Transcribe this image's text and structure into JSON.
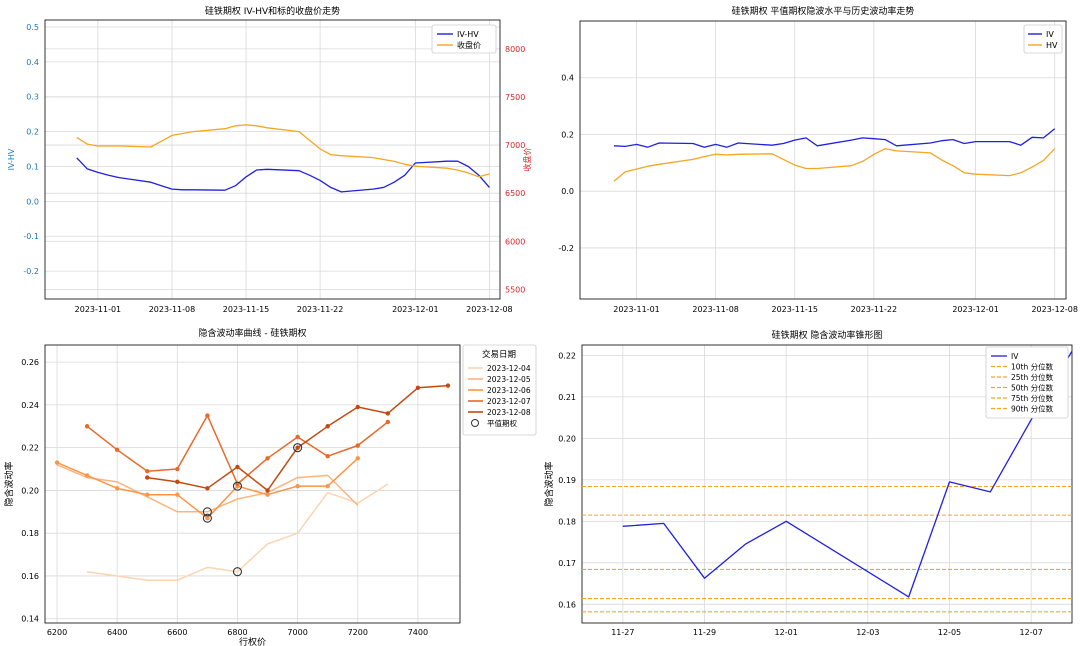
{
  "charts": [
    {
      "type": "line",
      "title": "硅铁期权 IV-HV和标的收盘价走势",
      "xlabel": "",
      "ylabel": "IV-HV",
      "y2label": "收盘价",
      "ylim": [
        -0.28,
        0.52
      ],
      "yticks": [
        -0.2,
        -0.1,
        0.0,
        0.1,
        0.2,
        0.3,
        0.4,
        0.5
      ],
      "y2lim": [
        5400,
        8300
      ],
      "y2ticks": [
        5500,
        6000,
        6500,
        7000,
        7500,
        8000
      ],
      "xlim": [
        "2023-10-27",
        "2023-12-09"
      ],
      "xticks": [
        "2023-11-01",
        "2023-11-08",
        "2023-11-15",
        "2023-11-22",
        "2023-12-01",
        "2023-12-08"
      ],
      "grid": true,
      "legend": "top-right",
      "series": [
        {
          "name": "IV-HV",
          "axis": "left",
          "color": "#2020e0",
          "x": [
            "2023-10-30",
            "2023-10-31",
            "2023-11-01",
            "2023-11-02",
            "2023-11-03",
            "2023-11-06",
            "2023-11-07",
            "2023-11-08",
            "2023-11-09",
            "2023-11-10",
            "2023-11-13",
            "2023-11-14",
            "2023-11-15",
            "2023-11-16",
            "2023-11-17",
            "2023-11-20",
            "2023-11-21",
            "2023-11-22",
            "2023-11-23",
            "2023-11-24",
            "2023-11-27",
            "2023-11-28",
            "2023-11-29",
            "2023-11-30",
            "2023-12-01",
            "2023-12-04",
            "2023-12-05",
            "2023-12-06",
            "2023-12-07",
            "2023-12-08"
          ],
          "y": [
            0.125,
            0.093,
            0.083,
            0.075,
            0.068,
            0.055,
            0.045,
            0.035,
            0.033,
            0.033,
            0.032,
            0.045,
            0.07,
            0.09,
            0.092,
            0.088,
            0.075,
            0.06,
            0.04,
            0.027,
            0.035,
            0.04,
            0.055,
            0.075,
            0.11,
            0.115,
            0.115,
            0.1,
            0.075,
            0.04
          ]
        },
        {
          "name": "收盘价",
          "axis": "right",
          "color": "#f5a623",
          "x": [
            "2023-10-30",
            "2023-10-31",
            "2023-11-01",
            "2023-11-02",
            "2023-11-03",
            "2023-11-06",
            "2023-11-07",
            "2023-11-08",
            "2023-11-09",
            "2023-11-10",
            "2023-11-13",
            "2023-11-14",
            "2023-11-15",
            "2023-11-16",
            "2023-11-17",
            "2023-11-20",
            "2023-11-21",
            "2023-11-22",
            "2023-11-23",
            "2023-11-24",
            "2023-11-27",
            "2023-11-28",
            "2023-11-29",
            "2023-11-30",
            "2023-12-01",
            "2023-12-04",
            "2023-12-05",
            "2023-12-06",
            "2023-12-07",
            "2023-12-08"
          ],
          "y": [
            7080,
            7010,
            6990,
            6990,
            6990,
            6980,
            7040,
            7100,
            7120,
            7140,
            7170,
            7200,
            7210,
            7200,
            7180,
            7140,
            7050,
            6960,
            6900,
            6890,
            6870,
            6850,
            6830,
            6800,
            6780,
            6760,
            6740,
            6710,
            6670,
            6700
          ]
        }
      ]
    },
    {
      "type": "line",
      "title": "硅铁期权 平值期权隐波水平与历史波动率走势",
      "xlabel": "",
      "ylabel": "",
      "ylim": [
        -0.38,
        0.6
      ],
      "yticks": [
        -0.2,
        0.0,
        0.2,
        0.4
      ],
      "xlim": [
        "2023-10-27",
        "2023-12-09"
      ],
      "xticks": [
        "2023-11-01",
        "2023-11-08",
        "2023-11-15",
        "2023-11-22",
        "2023-12-01",
        "2023-12-08"
      ],
      "grid": true,
      "legend": "top-right",
      "series": [
        {
          "name": "IV",
          "color": "#2020e0",
          "x": [
            "2023-10-30",
            "2023-10-31",
            "2023-11-01",
            "2023-11-02",
            "2023-11-03",
            "2023-11-06",
            "2023-11-07",
            "2023-11-08",
            "2023-11-09",
            "2023-11-10",
            "2023-11-13",
            "2023-11-14",
            "2023-11-15",
            "2023-11-16",
            "2023-11-17",
            "2023-11-20",
            "2023-11-21",
            "2023-11-22",
            "2023-11-23",
            "2023-11-24",
            "2023-11-27",
            "2023-11-28",
            "2023-11-29",
            "2023-11-30",
            "2023-12-01",
            "2023-12-04",
            "2023-12-05",
            "2023-12-06",
            "2023-12-07",
            "2023-12-08"
          ],
          "y": [
            0.16,
            0.158,
            0.165,
            0.155,
            0.17,
            0.168,
            0.155,
            0.165,
            0.155,
            0.17,
            0.162,
            0.168,
            0.18,
            0.188,
            0.16,
            0.18,
            0.188,
            0.185,
            0.182,
            0.16,
            0.17,
            0.178,
            0.182,
            0.168,
            0.175,
            0.175,
            0.162,
            0.19,
            0.188,
            0.22
          ]
        },
        {
          "name": "HV",
          "color": "#f5a623",
          "x": [
            "2023-10-30",
            "2023-10-31",
            "2023-11-01",
            "2023-11-02",
            "2023-11-03",
            "2023-11-06",
            "2023-11-07",
            "2023-11-08",
            "2023-11-09",
            "2023-11-10",
            "2023-11-13",
            "2023-11-14",
            "2023-11-15",
            "2023-11-16",
            "2023-11-17",
            "2023-11-20",
            "2023-11-21",
            "2023-11-22",
            "2023-11-23",
            "2023-11-24",
            "2023-11-27",
            "2023-11-28",
            "2023-11-29",
            "2023-11-30",
            "2023-12-01",
            "2023-12-04",
            "2023-12-05",
            "2023-12-06",
            "2023-12-07",
            "2023-12-08"
          ],
          "y": [
            0.035,
            0.068,
            0.078,
            0.088,
            0.095,
            0.112,
            0.122,
            0.13,
            0.128,
            0.13,
            0.132,
            0.112,
            0.092,
            0.08,
            0.08,
            0.09,
            0.105,
            0.13,
            0.15,
            0.142,
            0.135,
            0.11,
            0.09,
            0.065,
            0.06,
            0.055,
            0.065,
            0.085,
            0.108,
            0.15
          ]
        }
      ]
    },
    {
      "type": "line",
      "title": "隐含波动率曲线 - 硅铁期权",
      "xlabel": "行权价",
      "ylabel": "隐含波动率",
      "xlim": [
        6160,
        7540
      ],
      "xticks": [
        6200,
        6400,
        6600,
        6800,
        7000,
        7200,
        7400
      ],
      "ylim": [
        0.138,
        0.268
      ],
      "yticks": [
        0.14,
        0.16,
        0.18,
        0.2,
        0.22,
        0.24,
        0.26
      ],
      "grid": true,
      "legend": "outside-right",
      "legend_title": "交易日期",
      "atm_label": "平值期权",
      "series": [
        {
          "name": "2023-12-04",
          "color": "#fdd4b0",
          "markers": false,
          "x": [
            6300,
            6400,
            6500,
            6600,
            6700,
            6800,
            6900,
            7000,
            7100,
            7200,
            7300
          ],
          "y": [
            0.162,
            0.16,
            0.158,
            0.158,
            0.164,
            0.162,
            0.175,
            0.18,
            0.199,
            0.194,
            0.203
          ]
        },
        {
          "name": "2023-12-05",
          "color": "#fdb47f",
          "markers": false,
          "x": [
            6200,
            6300,
            6400,
            6500,
            6600,
            6700,
            6800,
            6900,
            7000,
            7100,
            7200
          ],
          "y": [
            0.212,
            0.206,
            0.204,
            0.197,
            0.19,
            0.19,
            0.196,
            0.199,
            0.206,
            0.207,
            0.193
          ]
        },
        {
          "name": "2023-12-06",
          "color": "#fd9548",
          "markers": true,
          "x": [
            6200,
            6300,
            6400,
            6500,
            6600,
            6700,
            6800,
            6900,
            7000,
            7100,
            7200
          ],
          "y": [
            0.213,
            0.207,
            0.201,
            0.198,
            0.198,
            0.187,
            0.202,
            0.198,
            0.202,
            0.202,
            0.215
          ]
        },
        {
          "name": "2023-12-07",
          "color": "#e8692a",
          "markers": true,
          "x": [
            6300,
            6400,
            6500,
            6600,
            6700,
            6800,
            6900,
            7000,
            7100,
            7200,
            7300
          ],
          "y": [
            0.23,
            0.219,
            0.209,
            0.21,
            0.235,
            0.203,
            0.215,
            0.225,
            0.216,
            0.221,
            0.232
          ]
        },
        {
          "name": "2023-12-08",
          "color": "#c24a12",
          "markers": true,
          "x": [
            6500,
            6600,
            6700,
            6800,
            6900,
            7000,
            7100,
            7200,
            7300,
            7400,
            7500
          ],
          "y": [
            0.206,
            0.204,
            0.201,
            0.211,
            0.2,
            0.22,
            0.23,
            0.239,
            0.236,
            0.248,
            0.249
          ]
        }
      ],
      "atm_points": [
        {
          "x": 6700,
          "y": 0.19
        },
        {
          "x": 6700,
          "y": 0.187
        },
        {
          "x": 6800,
          "y": 0.162
        },
        {
          "x": 6800,
          "y": 0.202
        },
        {
          "x": 7000,
          "y": 0.22
        }
      ]
    },
    {
      "type": "line",
      "title": "硅铁期权 隐含波动率锥形图",
      "xlabel": "",
      "ylabel": "隐含波动率",
      "xlim": [
        "2023-11-26",
        "2023-12-08"
      ],
      "xticks": [
        "11-27",
        "11-29",
        "12-01",
        "12-03",
        "12-05",
        "12-07"
      ],
      "ylim": [
        0.1555,
        0.2225
      ],
      "yticks": [
        0.16,
        0.17,
        0.18,
        0.19,
        0.2,
        0.21,
        0.22
      ],
      "grid": true,
      "legend": "top-right",
      "series": [
        {
          "name": "IV",
          "color": "#2020e0",
          "x": [
            "2023-11-27",
            "2023-11-28",
            "2023-11-29",
            "2023-11-30",
            "2023-12-01",
            "2023-12-04",
            "2023-12-05",
            "2023-12-06",
            "2023-12-07",
            "2023-12-08"
          ],
          "y": [
            0.1788,
            0.1795,
            0.1663,
            0.1745,
            0.18,
            0.1618,
            0.1895,
            0.1871,
            0.2045,
            0.221
          ]
        }
      ],
      "percentiles": [
        {
          "name": "10th 分位数",
          "value": 0.1582
        },
        {
          "name": "25th 分位数",
          "value": 0.1614
        },
        {
          "name": "50th 分位数",
          "value": 0.1684
        },
        {
          "name": "75th 分位数",
          "value": 0.1815
        },
        {
          "name": "90th 分位数",
          "value": 0.1884
        }
      ],
      "percentile_color": "#f5a623"
    }
  ],
  "colors": {
    "left_axis": "#1f77b4",
    "right_axis": "#d62728",
    "grid": "#d9d9d9",
    "axis": "#000000"
  }
}
